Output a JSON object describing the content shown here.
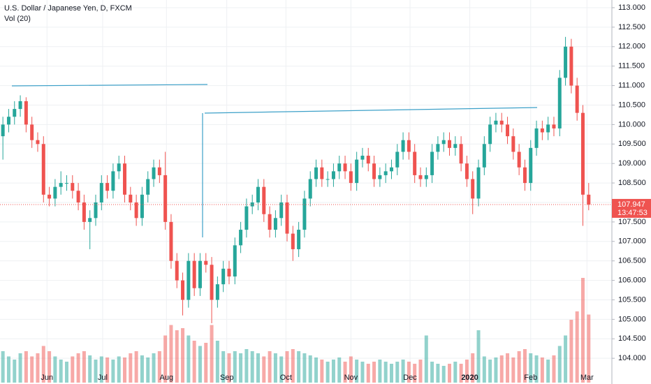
{
  "chart_data": {
    "type": "candlestick",
    "title": "U.S. Dollar / Japanese Yen, D, FXCM",
    "volume_title": "Vol (20)",
    "countdown": "13:47:53",
    "up_color": "#26a69a",
    "down_color": "#ef5350",
    "grid": true,
    "xlim": [
      -0.5,
      105
    ],
    "ylim": [
      103.34,
      113.197
    ],
    "volume_lim": [
      0,
      100
    ],
    "xticks": [
      {
        "value": 7.6,
        "label": "Jun"
      },
      {
        "value": 17.2,
        "label": "Jul"
      },
      {
        "value": 28.2,
        "label": "Aug"
      },
      {
        "value": 38.6,
        "label": "Sep"
      },
      {
        "value": 48.8,
        "label": "Oct"
      },
      {
        "value": 60,
        "label": "Nov"
      },
      {
        "value": 70.2,
        "label": "Dec"
      },
      {
        "value": 80.5,
        "label": "2020"
      },
      {
        "value": 91,
        "label": "Feb"
      },
      {
        "value": 100.7,
        "label": "Mar"
      }
    ],
    "yticks": [
      {
        "value": 104,
        "label": "104.000"
      },
      {
        "value": 104.5,
        "label": "104.500"
      },
      {
        "value": 105,
        "label": "105.000"
      },
      {
        "value": 105.5,
        "label": "105.500"
      },
      {
        "value": 106,
        "label": "106.000"
      },
      {
        "value": 106.5,
        "label": "106.500"
      },
      {
        "value": 107,
        "label": "107.000"
      },
      {
        "value": 107.5,
        "label": "107.500"
      },
      {
        "value": 108,
        "label": "108.000"
      },
      {
        "value": 108.5,
        "label": "108.500"
      },
      {
        "value": 109,
        "label": "109.000"
      },
      {
        "value": 109.5,
        "label": "109.500"
      },
      {
        "value": 110,
        "label": "110.000"
      },
      {
        "value": 110.5,
        "label": "110.500"
      },
      {
        "value": 111,
        "label": "111.000"
      },
      {
        "value": 111.5,
        "label": "111.500"
      },
      {
        "value": 112,
        "label": "112.000"
      },
      {
        "value": 112.5,
        "label": "112.500"
      },
      {
        "value": 113,
        "label": "113.000"
      }
    ],
    "open": [
      109.7,
      110.0,
      110.2,
      110.4,
      110.6,
      110.0,
      109.6,
      109.5,
      108.2,
      108.1,
      108.4,
      108.5,
      108.5,
      108.3,
      108.0,
      107.5,
      107.6,
      108.0,
      108.5,
      108.3,
      108.8,
      109.0,
      108.2,
      108.0,
      107.6,
      108.2,
      108.6,
      108.9,
      108.7,
      107.5,
      106.5,
      106.0,
      105.5,
      106.5,
      105.8,
      106.5,
      106.4,
      105.5,
      105.9,
      106.3,
      106.1,
      106.9,
      107.3,
      107.9,
      108.0,
      108.4,
      107.7,
      107.3,
      107.6,
      108.0,
      107.2,
      106.8,
      107.3,
      108.1,
      108.6,
      108.9,
      108.6,
      108.6,
      108.8,
      109.0,
      108.8,
      108.5,
      109.1,
      109.2,
      109.0,
      108.6,
      108.7,
      108.8,
      108.9,
      109.3,
      109.6,
      109.3,
      108.7,
      108.6,
      108.7,
      109.3,
      109.5,
      109.6,
      109.4,
      109.5,
      109.0,
      108.6,
      108.1,
      108.9,
      109.5,
      110.0,
      110.1,
      110.0,
      109.7,
      109.3,
      108.9,
      108.5,
      109.4,
      109.9,
      109.8,
      110.0,
      109.9,
      111.2,
      112.0,
      111.0,
      110.3,
      108.2
    ],
    "high": [
      110.2,
      110.4,
      110.6,
      110.75,
      110.7,
      110.2,
      109.8,
      109.7,
      108.4,
      108.6,
      108.8,
      108.7,
      108.7,
      108.5,
      108.2,
      107.8,
      108.2,
      108.7,
      108.7,
      109.0,
      109.2,
      109.2,
      108.4,
      108.2,
      108.4,
      108.8,
      109.1,
      109.1,
      109.3,
      107.7,
      106.7,
      106.2,
      106.7,
      106.7,
      106.7,
      106.7,
      106.6,
      106.1,
      106.5,
      106.5,
      107.1,
      107.5,
      108.1,
      108.2,
      108.6,
      108.6,
      107.9,
      107.8,
      108.2,
      108.2,
      107.4,
      107.5,
      108.3,
      108.8,
      109.1,
      109.1,
      108.8,
      109.0,
      109.2,
      109.2,
      109.0,
      109.3,
      109.4,
      109.4,
      109.2,
      108.9,
      109.0,
      109.1,
      109.5,
      109.8,
      109.8,
      109.5,
      108.9,
      108.9,
      109.5,
      109.7,
      109.8,
      109.8,
      109.7,
      109.7,
      109.2,
      108.8,
      109.1,
      109.7,
      110.2,
      110.3,
      110.3,
      110.2,
      109.9,
      109.5,
      109.1,
      109.6,
      110.1,
      110.1,
      110.2,
      110.2,
      111.4,
      112.25,
      112.2,
      111.2,
      110.5,
      108.5
    ],
    "low": [
      109.1,
      109.8,
      110.0,
      110.2,
      109.8,
      109.4,
      109.3,
      108.0,
      107.9,
      107.9,
      108.2,
      108.3,
      108.1,
      107.8,
      107.3,
      106.8,
      107.4,
      107.8,
      108.1,
      108.1,
      108.6,
      108.0,
      107.8,
      107.4,
      107.4,
      108.0,
      108.4,
      108.5,
      107.3,
      106.3,
      105.8,
      105.1,
      105.3,
      105.6,
      105.6,
      106.2,
      104.9,
      105.3,
      105.7,
      105.9,
      105.9,
      106.7,
      107.1,
      107.7,
      107.8,
      107.5,
      107.1,
      107.1,
      107.4,
      107.0,
      106.5,
      106.6,
      107.1,
      107.9,
      108.4,
      108.4,
      108.4,
      108.4,
      108.6,
      108.6,
      108.3,
      108.3,
      108.9,
      108.8,
      108.4,
      108.4,
      108.5,
      108.6,
      108.7,
      109.1,
      109.1,
      108.5,
      108.4,
      108.4,
      108.5,
      109.1,
      109.3,
      109.2,
      109.2,
      108.8,
      108.4,
      107.7,
      107.9,
      108.7,
      109.3,
      109.8,
      109.8,
      109.5,
      109.1,
      108.7,
      108.3,
      108.3,
      109.2,
      109.6,
      109.6,
      109.7,
      109.7,
      111.0,
      110.8,
      110.1,
      107.4,
      107.8
    ],
    "close": [
      110.0,
      110.2,
      110.4,
      110.6,
      110.0,
      109.6,
      109.5,
      108.2,
      108.1,
      108.4,
      108.5,
      108.5,
      108.3,
      108.0,
      107.5,
      107.6,
      108.0,
      108.5,
      108.3,
      108.8,
      109.0,
      108.2,
      108.0,
      107.6,
      108.2,
      108.6,
      108.9,
      108.7,
      107.5,
      106.5,
      106.0,
      105.5,
      106.5,
      105.8,
      106.5,
      106.4,
      105.5,
      105.9,
      106.3,
      106.1,
      106.9,
      107.3,
      107.9,
      108.0,
      108.4,
      107.7,
      107.3,
      107.6,
      108.0,
      107.2,
      106.8,
      107.3,
      108.1,
      108.6,
      108.9,
      108.6,
      108.6,
      108.8,
      109.0,
      108.8,
      108.5,
      109.1,
      109.2,
      109.0,
      108.6,
      108.7,
      108.8,
      108.9,
      109.3,
      109.6,
      109.3,
      108.7,
      108.6,
      108.7,
      109.3,
      109.5,
      109.6,
      109.4,
      109.5,
      109.0,
      108.6,
      108.1,
      108.9,
      109.5,
      110.0,
      110.1,
      110.0,
      109.7,
      109.3,
      108.9,
      108.5,
      109.4,
      109.9,
      109.8,
      110.0,
      109.9,
      111.2,
      112.0,
      111.0,
      110.3,
      108.2,
      107.947
    ],
    "volume": [
      30,
      25,
      22,
      28,
      30,
      25,
      28,
      35,
      30,
      25,
      22,
      20,
      25,
      28,
      30,
      26,
      22,
      25,
      24,
      22,
      25,
      24,
      28,
      30,
      26,
      24,
      28,
      30,
      45,
      55,
      50,
      52,
      45,
      40,
      35,
      38,
      55,
      40,
      30,
      28,
      30,
      28,
      32,
      30,
      28,
      25,
      30,
      28,
      25,
      30,
      32,
      30,
      28,
      26,
      24,
      22,
      20,
      22,
      24,
      20,
      25,
      22,
      20,
      18,
      20,
      22,
      20,
      18,
      20,
      22,
      20,
      18,
      22,
      45,
      20,
      18,
      16,
      18,
      20,
      18,
      22,
      28,
      50,
      25,
      22,
      24,
      26,
      28,
      24,
      30,
      32,
      28,
      26,
      24,
      22,
      26,
      35,
      45,
      60,
      68,
      100,
      65
    ]
  }
}
